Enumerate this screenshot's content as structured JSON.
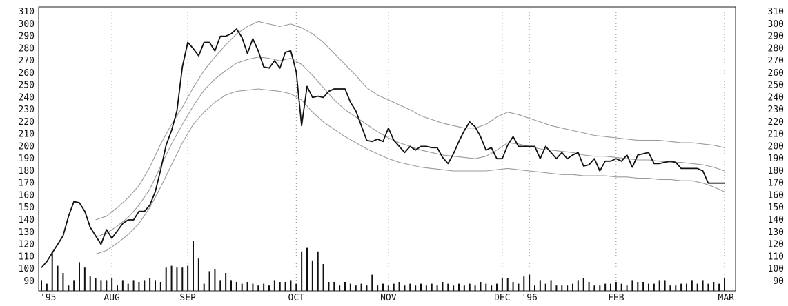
{
  "colors": {
    "price": "#111111",
    "band": "#9a9a9a",
    "volume": "#111111",
    "grid": "#8a8a8a",
    "background": "#ffffff",
    "frame": "#222222"
  },
  "chart_data": {
    "type": "line",
    "title": "",
    "xlabel": "",
    "ylabel": "",
    "ylim": [
      82,
      314
    ],
    "yticks": [
      90,
      100,
      110,
      120,
      130,
      140,
      150,
      160,
      170,
      180,
      190,
      200,
      210,
      220,
      230,
      240,
      250,
      260,
      270,
      280,
      290,
      300,
      310
    ],
    "x_labels": [
      {
        "label": "'95",
        "x": 0
      },
      {
        "label": "AUG",
        "x": 13
      },
      {
        "label": "SEP",
        "x": 27
      },
      {
        "label": "OCT",
        "x": 47
      },
      {
        "label": "NOV",
        "x": 64
      },
      {
        "label": "DEC",
        "x": 85
      },
      {
        "label": "'96",
        "x": 90
      },
      {
        "label": "FEB",
        "x": 106
      },
      {
        "label": "MAR",
        "x": 126
      }
    ],
    "gridlines_x": [
      13,
      27,
      47,
      64,
      85,
      90,
      106,
      126
    ],
    "grid": true,
    "legend": "none",
    "series": [
      {
        "role": "price",
        "x": [
          0,
          1,
          2,
          3,
          4,
          5,
          6,
          7,
          8,
          9,
          10,
          11,
          12,
          13,
          14,
          15,
          16,
          17,
          18,
          19,
          20,
          21,
          22,
          23,
          24,
          25,
          26,
          27,
          28,
          29,
          30,
          31,
          32,
          33,
          34,
          35,
          36,
          37,
          38,
          39,
          40,
          41,
          42,
          43,
          44,
          45,
          46,
          47,
          48,
          49,
          50,
          51,
          52,
          53,
          54,
          55,
          56,
          57,
          58,
          59,
          60,
          61,
          62,
          63,
          64,
          65,
          66,
          67,
          68,
          69,
          70,
          71,
          72,
          73,
          74,
          75,
          76,
          77,
          78,
          79,
          80,
          81,
          82,
          83,
          84,
          85,
          86,
          87,
          88,
          89,
          90,
          91,
          92,
          93,
          94,
          95,
          96,
          97,
          98,
          99,
          100,
          101,
          102,
          103,
          104,
          105,
          106,
          107,
          108,
          109,
          110,
          111,
          112,
          113,
          114,
          115,
          116,
          117,
          118,
          119,
          120,
          121,
          122,
          123,
          124,
          125,
          126
        ],
        "values": [
          101,
          106,
          113,
          120,
          127,
          143,
          155,
          154,
          147,
          134,
          127,
          120,
          132,
          125,
          131,
          137,
          140,
          140,
          147,
          147,
          152,
          163,
          181,
          201,
          213,
          229,
          265,
          285,
          280,
          274,
          285,
          285,
          278,
          290,
          290,
          292,
          296,
          289,
          276,
          288,
          278,
          265,
          264,
          270,
          264,
          277,
          278,
          261,
          217,
          249,
          240,
          241,
          240,
          245,
          247,
          247,
          247,
          236,
          229,
          217,
          205,
          204,
          206,
          204,
          215,
          205,
          200,
          195,
          200,
          197,
          200,
          200,
          199,
          199,
          191,
          186,
          194,
          204,
          213,
          220,
          216,
          208,
          197,
          199,
          190,
          190,
          201,
          208,
          200,
          200,
          200,
          200,
          190,
          200,
          195,
          190,
          195,
          190,
          193,
          195,
          184,
          185,
          190,
          180,
          188,
          188,
          190,
          188,
          193,
          183,
          193,
          194,
          195,
          186,
          186,
          187,
          188,
          187,
          182,
          182,
          182,
          182,
          180,
          170,
          170,
          170,
          170
        ]
      },
      {
        "role": "upper_band",
        "x": [
          10,
          12,
          14,
          16,
          18,
          20,
          22,
          24,
          26,
          28,
          30,
          32,
          34,
          36,
          38,
          40,
          42,
          44,
          46,
          48,
          50,
          52,
          54,
          56,
          58,
          60,
          62,
          64,
          66,
          68,
          70,
          72,
          74,
          76,
          78,
          80,
          82,
          84,
          86,
          88,
          90,
          92,
          94,
          96,
          98,
          100,
          102,
          104,
          106,
          108,
          110,
          112,
          114,
          116,
          118,
          120,
          122,
          124,
          126
        ],
        "values": [
          140,
          143,
          150,
          158,
          168,
          183,
          202,
          218,
          232,
          248,
          262,
          273,
          283,
          292,
          298,
          302,
          300,
          298,
          300,
          297,
          292,
          285,
          276,
          267,
          258,
          248,
          242,
          238,
          234,
          230,
          225,
          222,
          219,
          217,
          215,
          215,
          218,
          224,
          228,
          226,
          223,
          220,
          217,
          215,
          213,
          211,
          209,
          208,
          207,
          206,
          205,
          205,
          205,
          204,
          203,
          203,
          202,
          201,
          199
        ]
      },
      {
        "role": "middle_band",
        "x": [
          10,
          12,
          14,
          16,
          18,
          20,
          22,
          24,
          26,
          28,
          30,
          32,
          34,
          36,
          38,
          40,
          42,
          44,
          46,
          48,
          50,
          52,
          54,
          56,
          58,
          60,
          62,
          64,
          66,
          68,
          70,
          72,
          74,
          76,
          78,
          80,
          82,
          84,
          86,
          88,
          90,
          92,
          94,
          96,
          98,
          100,
          102,
          104,
          106,
          108,
          110,
          112,
          114,
          116,
          118,
          120,
          122,
          124,
          126
        ],
        "values": [
          126,
          129,
          135,
          142,
          152,
          165,
          184,
          202,
          218,
          233,
          246,
          255,
          262,
          268,
          271,
          273,
          272,
          270,
          272,
          267,
          258,
          248,
          238,
          230,
          224,
          218,
          212,
          207,
          203,
          200,
          197,
          195,
          193,
          192,
          191,
          190,
          192,
          197,
          203,
          202,
          200,
          198,
          197,
          196,
          195,
          193,
          192,
          192,
          191,
          190,
          189,
          189,
          188,
          187,
          187,
          186,
          185,
          183,
          180
        ]
      },
      {
        "role": "lower_band",
        "x": [
          10,
          12,
          14,
          16,
          18,
          20,
          22,
          24,
          26,
          28,
          30,
          32,
          34,
          36,
          38,
          40,
          42,
          44,
          46,
          48,
          50,
          52,
          54,
          56,
          58,
          60,
          62,
          64,
          66,
          68,
          70,
          72,
          74,
          76,
          78,
          80,
          82,
          84,
          86,
          88,
          90,
          92,
          94,
          96,
          98,
          100,
          102,
          104,
          106,
          108,
          110,
          112,
          114,
          116,
          118,
          120,
          122,
          124,
          126
        ],
        "values": [
          112,
          115,
          121,
          128,
          137,
          150,
          167,
          185,
          203,
          218,
          228,
          236,
          242,
          245,
          246,
          247,
          246,
          245,
          243,
          238,
          228,
          220,
          214,
          208,
          203,
          198,
          194,
          190,
          187,
          185,
          183,
          182,
          181,
          180,
          180,
          180,
          180,
          181,
          182,
          181,
          180,
          179,
          178,
          177,
          177,
          176,
          176,
          176,
          175,
          175,
          174,
          174,
          173,
          173,
          172,
          172,
          170,
          167,
          163
        ]
      }
    ],
    "volume": {
      "x": [
        0,
        1,
        2,
        3,
        4,
        5,
        6,
        7,
        8,
        9,
        10,
        11,
        12,
        13,
        14,
        15,
        16,
        17,
        18,
        19,
        20,
        21,
        22,
        23,
        24,
        25,
        26,
        27,
        28,
        29,
        30,
        31,
        32,
        33,
        34,
        35,
        36,
        37,
        38,
        39,
        40,
        41,
        42,
        43,
        44,
        45,
        46,
        47,
        48,
        49,
        50,
        51,
        52,
        53,
        54,
        55,
        56,
        57,
        58,
        59,
        60,
        61,
        62,
        63,
        64,
        65,
        66,
        67,
        68,
        69,
        70,
        71,
        72,
        73,
        74,
        75,
        76,
        77,
        78,
        79,
        80,
        81,
        82,
        83,
        84,
        85,
        86,
        87,
        88,
        89,
        90,
        91,
        92,
        93,
        94,
        95,
        96,
        97,
        98,
        99,
        100,
        101,
        102,
        103,
        104,
        105,
        106,
        107,
        108,
        109,
        110,
        111,
        112,
        113,
        114,
        115,
        116,
        117,
        118,
        119,
        120,
        121,
        122,
        123,
        124,
        125,
        126
      ],
      "values": [
        6,
        4,
        22,
        14,
        10,
        3,
        6,
        16,
        13,
        8,
        7,
        6,
        6,
        7,
        3,
        6,
        4,
        6,
        5,
        6,
        7,
        6,
        5,
        13,
        14,
        13,
        13,
        14,
        28,
        18,
        4,
        11,
        12,
        6,
        10,
        6,
        5,
        4,
        5,
        4,
        3,
        4,
        3,
        6,
        5,
        5,
        6,
        4,
        22,
        24,
        17,
        22,
        15,
        5,
        5,
        3,
        5,
        4,
        3,
        4,
        3,
        9,
        3,
        4,
        3,
        4,
        5,
        3,
        4,
        3,
        4,
        3,
        4,
        3,
        5,
        4,
        3,
        4,
        3,
        4,
        3,
        5,
        4,
        3,
        4,
        7,
        7,
        5,
        4,
        8,
        9,
        3,
        6,
        4,
        6,
        3,
        3,
        3,
        4,
        6,
        7,
        5,
        3,
        3,
        4,
        4,
        5,
        4,
        3,
        6,
        5,
        5,
        4,
        4,
        6,
        6,
        3,
        3,
        4,
        4,
        6,
        4,
        6,
        4,
        5,
        4,
        7
      ]
    }
  }
}
